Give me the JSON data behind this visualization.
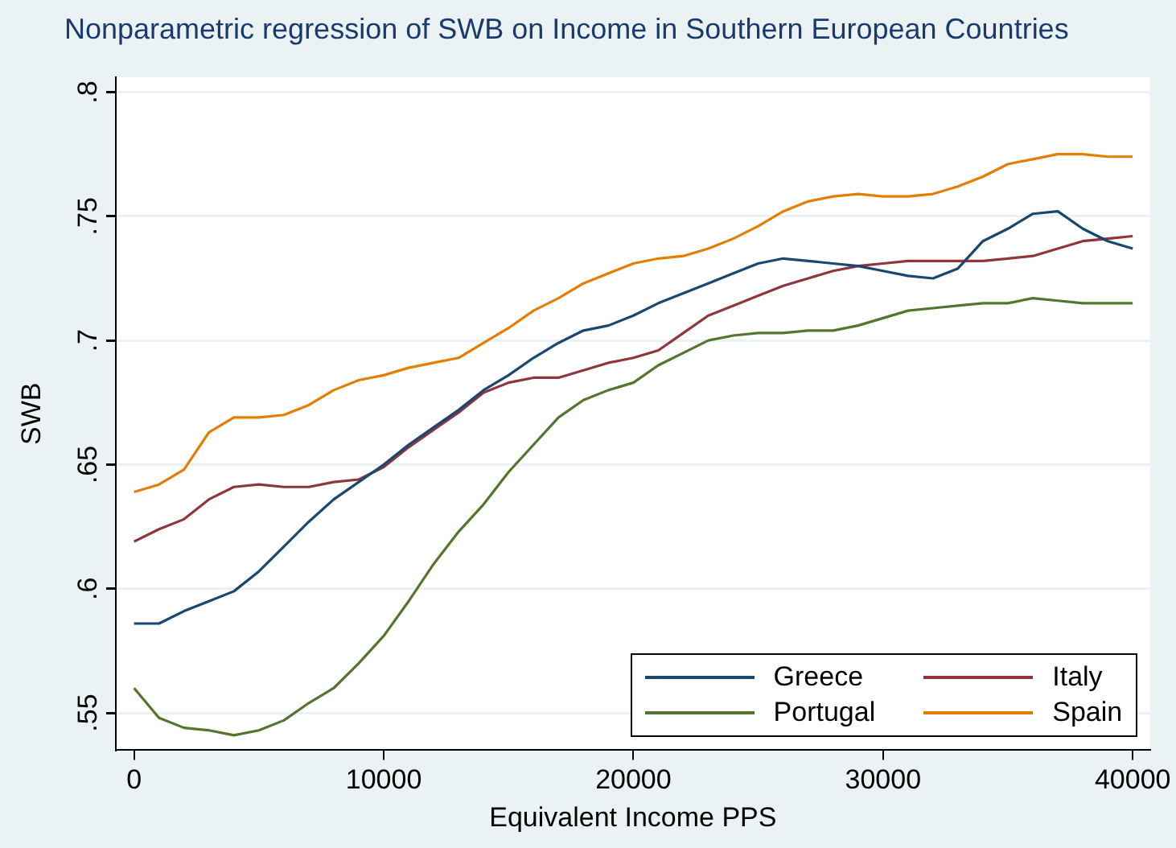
{
  "chart_data": {
    "type": "line",
    "title": "Nonparametric regression of SWB on Income in Southern European Countries",
    "xlabel": "Equivalent Income PPS",
    "ylabel": "SWB",
    "xlim": [
      -730,
      40690
    ],
    "xticks": [
      0,
      10000,
      20000,
      30000,
      40000
    ],
    "ylim": [
      0.535,
      0.806
    ],
    "yticks": [
      {
        "value": 0.55,
        "label": ".55"
      },
      {
        "value": 0.6,
        "label": ".6"
      },
      {
        "value": 0.65,
        "label": ".65"
      },
      {
        "value": 0.7,
        "label": ".7"
      },
      {
        "value": 0.75,
        "label": ".75"
      },
      {
        "value": 0.8,
        "label": ".8"
      }
    ],
    "grid": "y",
    "legend": "bottom right",
    "marker": "none",
    "line_style": "solid",
    "x": [
      0,
      1000,
      2000,
      3000,
      4000,
      5000,
      6000,
      7000,
      8000,
      9000,
      10000,
      11000,
      12000,
      13000,
      14000,
      15000,
      16000,
      17000,
      18000,
      19000,
      20000,
      21000,
      22000,
      23000,
      24000,
      25000,
      26000,
      27000,
      28000,
      29000,
      30000,
      31000,
      32000,
      33000,
      34000,
      35000,
      36000,
      37000,
      38000,
      39000,
      40000
    ],
    "series": [
      {
        "name": "Greece",
        "color": "#1a476f",
        "values": [
          0.586,
          0.586,
          0.591,
          0.595,
          0.599,
          0.607,
          0.617,
          0.627,
          0.636,
          0.643,
          0.65,
          0.658,
          0.665,
          0.672,
          0.68,
          0.686,
          0.693,
          0.699,
          0.704,
          0.706,
          0.71,
          0.715,
          0.719,
          0.723,
          0.727,
          0.731,
          0.733,
          0.732,
          0.731,
          0.73,
          0.728,
          0.726,
          0.725,
          0.729,
          0.74,
          0.745,
          0.751,
          0.752,
          0.745,
          0.74,
          0.737
        ]
      },
      {
        "name": "Italy",
        "color": "#90353b",
        "values": [
          0.619,
          0.624,
          0.628,
          0.636,
          0.641,
          0.642,
          0.641,
          0.641,
          0.643,
          0.644,
          0.649,
          0.657,
          0.664,
          0.671,
          0.679,
          0.683,
          0.685,
          0.685,
          0.688,
          0.691,
          0.693,
          0.696,
          0.703,
          0.71,
          0.714,
          0.718,
          0.722,
          0.725,
          0.728,
          0.73,
          0.731,
          0.732,
          0.732,
          0.732,
          0.732,
          0.733,
          0.734,
          0.737,
          0.74,
          0.741,
          0.742
        ]
      },
      {
        "name": "Portugal",
        "color": "#55752f",
        "values": [
          0.56,
          0.548,
          0.544,
          0.543,
          0.541,
          0.543,
          0.547,
          0.554,
          0.56,
          0.57,
          0.581,
          0.595,
          0.61,
          0.623,
          0.634,
          0.647,
          0.658,
          0.669,
          0.676,
          0.68,
          0.683,
          0.69,
          0.695,
          0.7,
          0.702,
          0.703,
          0.703,
          0.704,
          0.704,
          0.706,
          0.709,
          0.712,
          0.713,
          0.714,
          0.715,
          0.715,
          0.717,
          0.716,
          0.715,
          0.715,
          0.715
        ]
      },
      {
        "name": "Spain",
        "color": "#e37e00",
        "values": [
          0.639,
          0.642,
          0.648,
          0.663,
          0.669,
          0.669,
          0.67,
          0.674,
          0.68,
          0.684,
          0.686,
          0.689,
          0.691,
          0.693,
          0.699,
          0.705,
          0.712,
          0.717,
          0.723,
          0.727,
          0.731,
          0.733,
          0.734,
          0.737,
          0.741,
          0.746,
          0.752,
          0.756,
          0.758,
          0.759,
          0.758,
          0.758,
          0.759,
          0.762,
          0.766,
          0.771,
          0.773,
          0.775,
          0.775,
          0.774,
          0.774
        ]
      }
    ]
  }
}
